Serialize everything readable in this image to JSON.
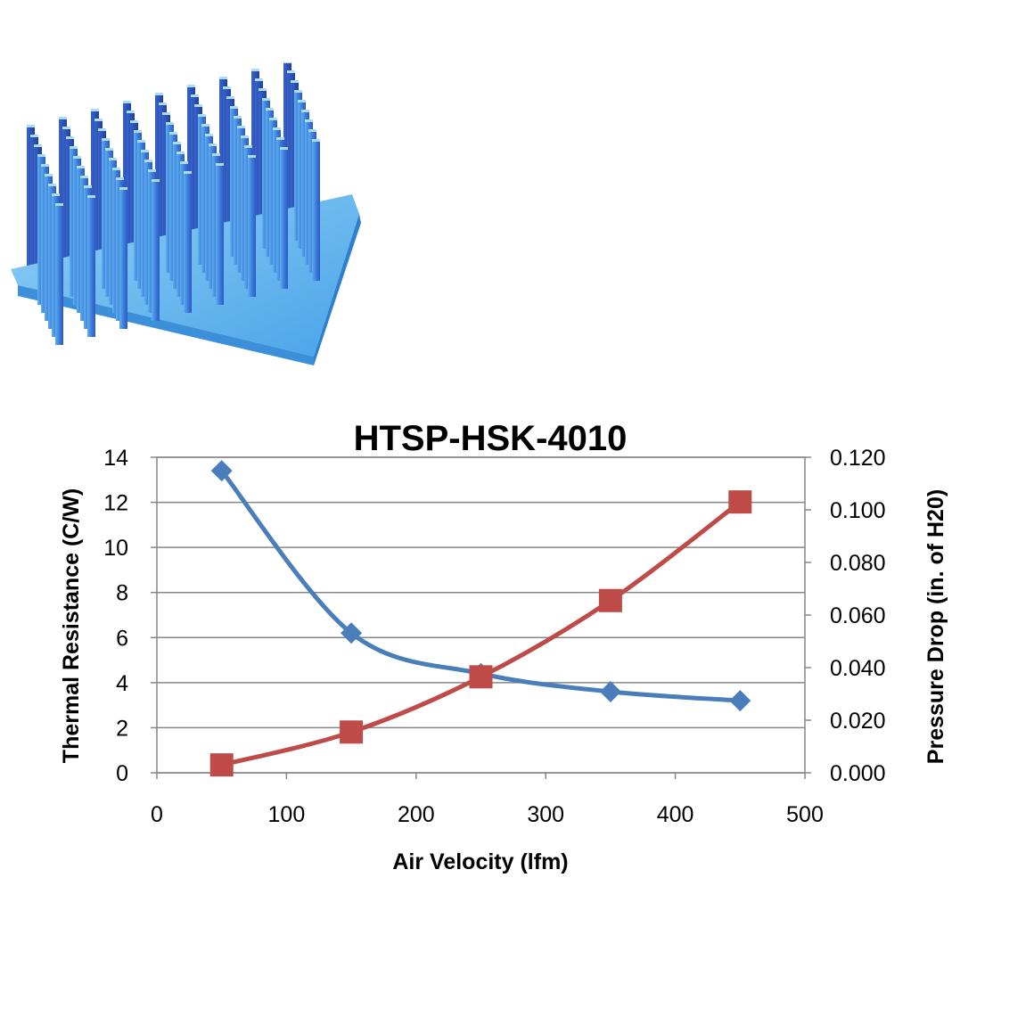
{
  "colors": {
    "thermal": "#4a7ebb",
    "pressure": "#be4b48",
    "grid": "#868686",
    "heatsink_light": "#7ec3f0",
    "heatsink_dark": "#2b57c8"
  },
  "product_image": {
    "icon": "pin-fin-heatsink-icon"
  },
  "chart_data": {
    "type": "line",
    "title": "HTSP-HSK-4010",
    "xlabel": "Air Velocity (lfm)",
    "ylabel": "Thermal Resistance (C/W)",
    "y2label": "Pressure Drop (in. of H20)",
    "xlim": [
      0,
      500
    ],
    "ylim": [
      0,
      14
    ],
    "y2lim": [
      0,
      0.12
    ],
    "x_ticks": [
      "0",
      "100",
      "200",
      "300",
      "400",
      "500"
    ],
    "y_ticks": [
      "0",
      "2",
      "4",
      "6",
      "8",
      "10",
      "12",
      "14"
    ],
    "y2_ticks": [
      "0.000",
      "0.020",
      "0.040",
      "0.060",
      "0.080",
      "0.100",
      "0.120"
    ],
    "grid": true,
    "legend": "none",
    "series": [
      {
        "axis": "left",
        "marker": "diamond",
        "x": [
          50,
          150,
          250,
          350,
          450
        ],
        "values": [
          13.4,
          6.2,
          4.4,
          3.6,
          3.2
        ]
      },
      {
        "axis": "right",
        "marker": "square",
        "x": [
          50,
          150,
          250,
          350,
          450
        ],
        "values": [
          0.003,
          0.0155,
          0.0365,
          0.0655,
          0.103
        ]
      }
    ]
  }
}
